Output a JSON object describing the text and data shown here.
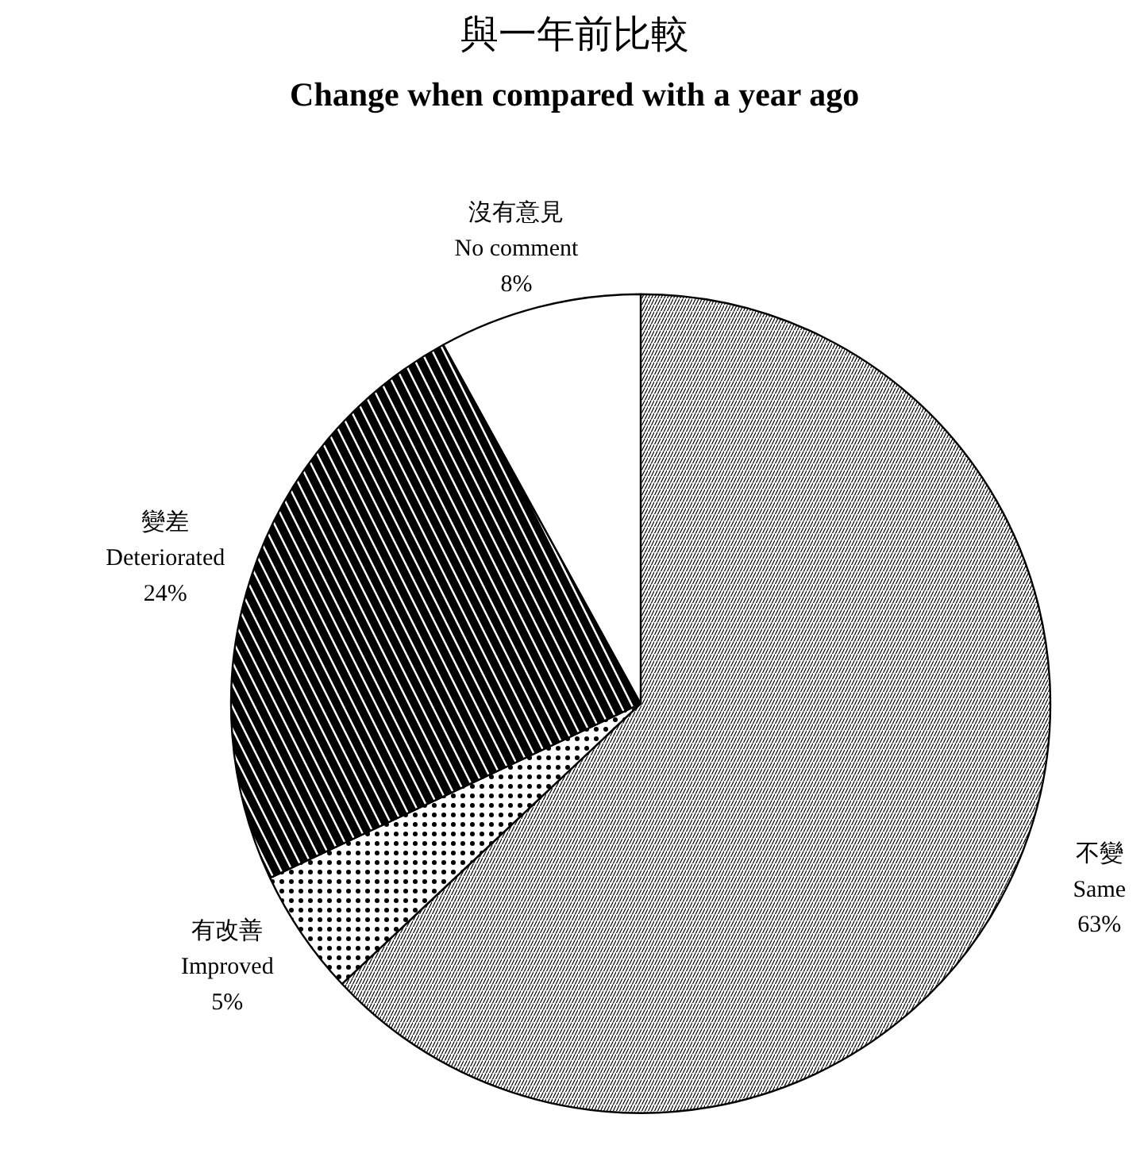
{
  "chart_data": {
    "type": "pie",
    "title": "與一年前比較",
    "subtitle": "Change when compared with a year ago",
    "categories": [
      "不變\nSame",
      "有改善\nImproved",
      "變差\nDeteriorated",
      "沒有意見\nNo comment"
    ],
    "values": [
      63,
      5,
      24,
      8
    ],
    "value_labels": [
      "63%",
      "5%",
      "24%",
      "8%"
    ],
    "colors": [
      "#ffffff",
      "#ffffff",
      "#ffffff",
      "#ffffff"
    ]
  }
}
